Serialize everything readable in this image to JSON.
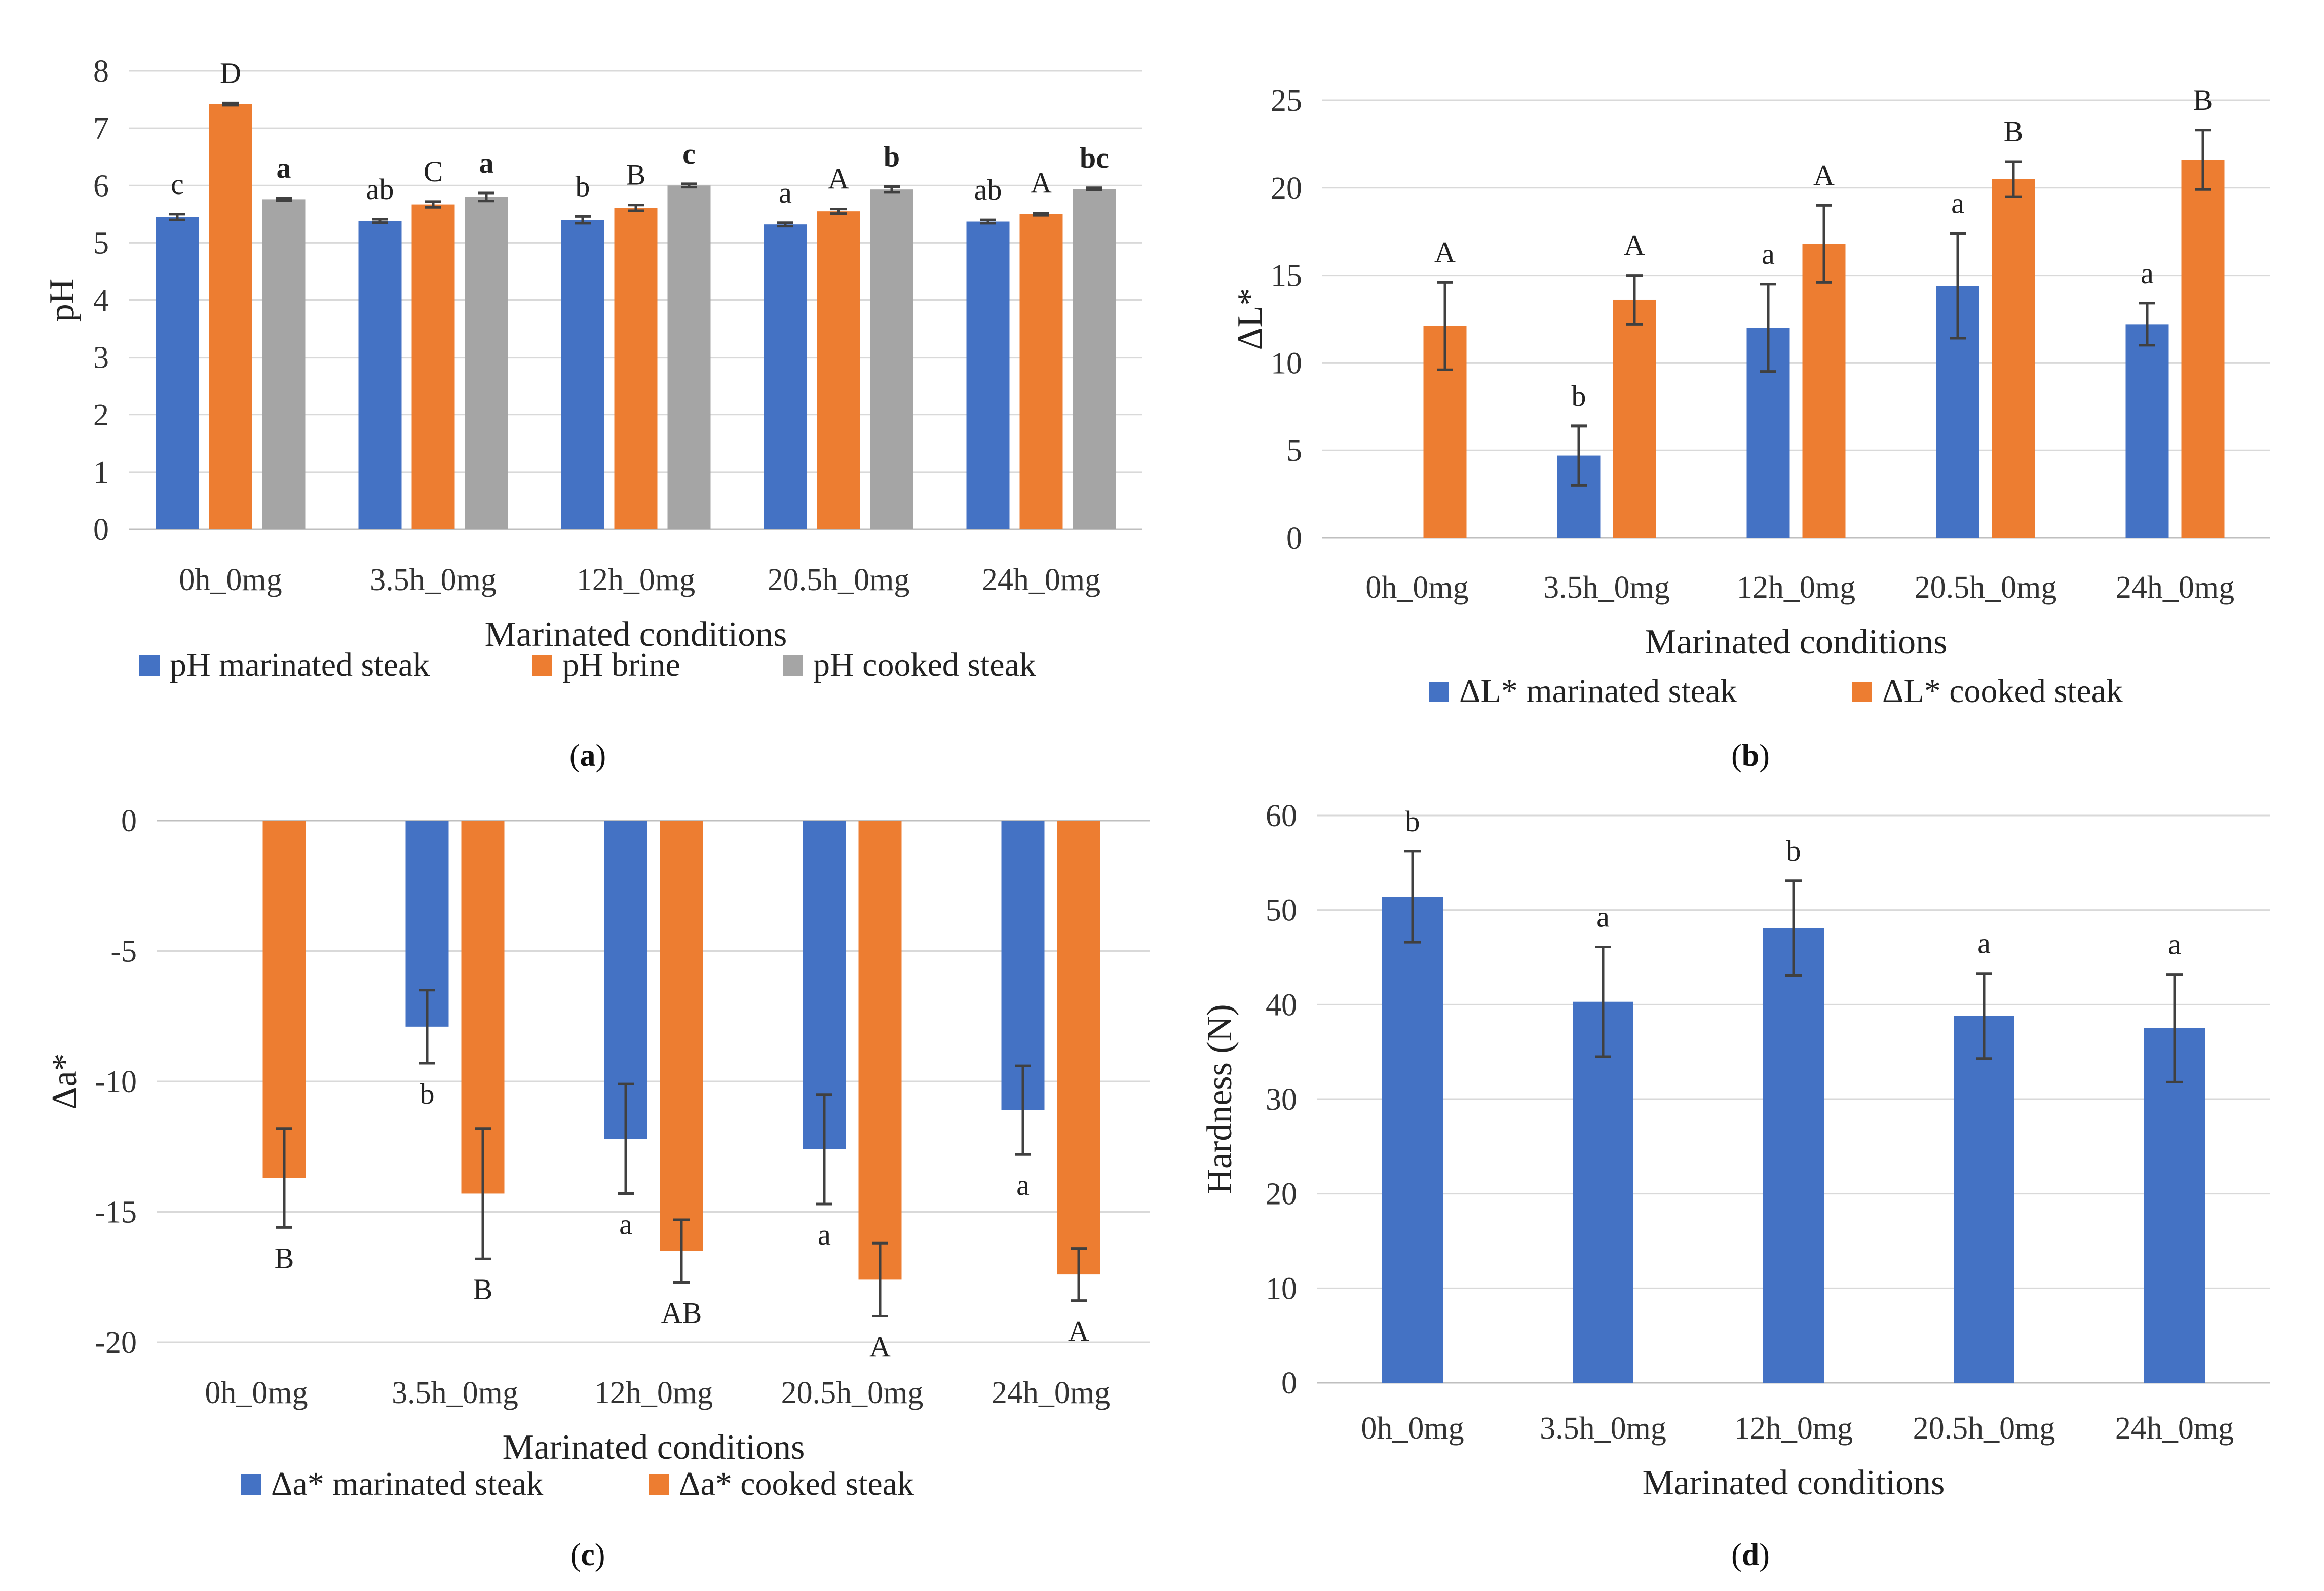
{
  "colors": {
    "blue": "#4472C4",
    "orange": "#ED7D31",
    "gray": "#A5A5A5",
    "grid": "#D9D9D9",
    "error": "#404040"
  },
  "chart_data": [
    {
      "type": "bar",
      "panel": "a",
      "categories": [
        "0h_0mg",
        "3.5h_0mg",
        "12h_0mg",
        "20.5h_0mg",
        "24h_0mg"
      ],
      "xlabel": "Marinated conditions",
      "ylabel": "pH",
      "ylim": [
        0,
        8
      ],
      "yticks": [
        "0",
        "1",
        "2",
        "3",
        "4",
        "5",
        "6",
        "7",
        "8"
      ],
      "grid": true,
      "legend_position": "bottom",
      "series": [
        {
          "name": "pH marinated steak",
          "color": "#4472C4",
          "values": [
            5.45,
            5.38,
            5.4,
            5.32,
            5.37
          ],
          "errors": [
            0.05,
            0.03,
            0.06,
            0.03,
            0.03
          ],
          "labels": [
            "c",
            "ab",
            "b",
            "a",
            "ab"
          ],
          "bold": false
        },
        {
          "name": "pH brine",
          "color": "#ED7D31",
          "values": [
            7.42,
            5.67,
            5.61,
            5.55,
            5.5
          ],
          "errors": [
            0.02,
            0.05,
            0.05,
            0.04,
            0.02
          ],
          "labels": [
            "D",
            "C",
            "B",
            "A",
            "A"
          ],
          "bold": false
        },
        {
          "name": "pH cooked steak",
          "color": "#A5A5A5",
          "values": [
            5.76,
            5.8,
            6.0,
            5.93,
            5.94
          ],
          "errors": [
            0.02,
            0.07,
            0.03,
            0.05,
            0.02
          ],
          "labels": [
            "a",
            "a",
            "c",
            "b",
            "bc"
          ],
          "bold": true
        }
      ]
    },
    {
      "type": "bar",
      "panel": "b",
      "categories": [
        "0h_0mg",
        "3.5h_0mg",
        "12h_0mg",
        "20.5h_0mg",
        "24h_0mg"
      ],
      "xlabel": "Marinated conditions",
      "ylabel": "ΔL*",
      "ylim": [
        0,
        25
      ],
      "yticks": [
        "0",
        "5",
        "10",
        "15",
        "20",
        "25"
      ],
      "grid": true,
      "legend_position": "bottom",
      "series": [
        {
          "name": "ΔL* marinated steak",
          "color": "#4472C4",
          "values": [
            null,
            4.7,
            12.0,
            14.4,
            12.2
          ],
          "errors": [
            null,
            1.7,
            2.5,
            3.0,
            1.2
          ],
          "labels": [
            "",
            "b",
            "a",
            "a",
            "a"
          ],
          "bold": false
        },
        {
          "name": "ΔL* cooked steak",
          "color": "#ED7D31",
          "values": [
            12.1,
            13.6,
            16.8,
            20.5,
            21.6
          ],
          "errors": [
            2.5,
            1.4,
            2.2,
            1.0,
            1.7
          ],
          "labels": [
            "A",
            "A",
            "A",
            "B",
            "B"
          ],
          "bold": false
        }
      ]
    },
    {
      "type": "bar",
      "panel": "c",
      "categories": [
        "0h_0mg",
        "3.5h_0mg",
        "12h_0mg",
        "20.5h_0mg",
        "24h_0mg"
      ],
      "xlabel": "Marinated conditions",
      "ylabel": "Δa*",
      "ylim": [
        -20,
        0
      ],
      "yticks": [
        "-20",
        "-15",
        "-10",
        "-5",
        "0"
      ],
      "grid": true,
      "legend_position": "bottom",
      "series": [
        {
          "name": "Δa* marinated steak",
          "color": "#4472C4",
          "values": [
            null,
            -7.9,
            -12.2,
            -12.6,
            -11.1
          ],
          "errors": [
            null,
            1.4,
            2.1,
            2.1,
            1.7
          ],
          "labels": [
            "",
            "b",
            "a",
            "a",
            "a"
          ],
          "bold": false
        },
        {
          "name": "Δa* cooked steak",
          "color": "#ED7D31",
          "values": [
            -13.7,
            -14.3,
            -16.5,
            -17.6,
            -17.4
          ],
          "errors": [
            1.9,
            2.5,
            1.2,
            1.4,
            1.0
          ],
          "labels": [
            "B",
            "B",
            "AB",
            "A",
            "A"
          ],
          "bold": false
        }
      ]
    },
    {
      "type": "bar",
      "panel": "d",
      "categories": [
        "0h_0mg",
        "3.5h_0mg",
        "12h_0mg",
        "20.5h_0mg",
        "24h_0mg"
      ],
      "xlabel": "Marinated conditions",
      "ylabel": "Hardness (N)",
      "ylim": [
        0,
        60
      ],
      "yticks": [
        "0",
        "10",
        "20",
        "30",
        "40",
        "50",
        "60"
      ],
      "grid": true,
      "legend_position": "none",
      "series": [
        {
          "color": "#4472C4",
          "values": [
            51.4,
            40.3,
            48.1,
            38.8,
            37.5
          ],
          "errors": [
            4.8,
            5.8,
            5.0,
            4.5,
            5.7
          ],
          "labels": [
            "b",
            "a",
            "b",
            "a",
            "a"
          ],
          "bold": false
        }
      ]
    }
  ],
  "panel_tags": [
    {
      "open": "(",
      "letter": "a",
      "close": ")"
    },
    {
      "open": "(",
      "letter": "b",
      "close": ")"
    },
    {
      "open": "(",
      "letter": "c",
      "close": ")"
    },
    {
      "open": "(",
      "letter": "d",
      "close": ")"
    }
  ]
}
